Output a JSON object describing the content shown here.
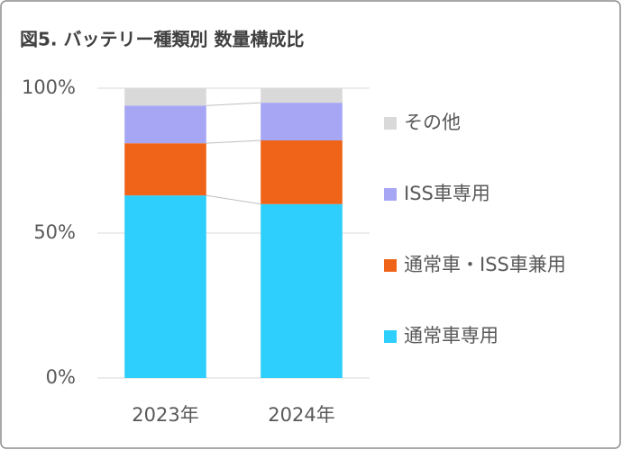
{
  "chart_data": {
    "type": "stacked_bar",
    "title": "図5. バッテリー種類別 数量構成比",
    "categories": [
      "2023年",
      "2024年"
    ],
    "series": [
      {
        "name": "通常車専用",
        "color": "#2ecffc",
        "values": [
          63,
          60
        ]
      },
      {
        "name": "通常車・ISS車兼用",
        "color": "#f0641a",
        "values": [
          18,
          22
        ]
      },
      {
        "name": "ISS車専用",
        "color": "#a6a6f5",
        "values": [
          13,
          13
        ]
      },
      {
        "name": "その他",
        "color": "#d9d9d9",
        "values": [
          6,
          5
        ]
      }
    ],
    "ylim": [
      0,
      100
    ],
    "yticks": [
      {
        "value": 0,
        "label": "0%"
      },
      {
        "value": 50,
        "label": "50%"
      },
      {
        "value": 100,
        "label": "100%"
      }
    ],
    "grid": true,
    "legend": "right"
  }
}
